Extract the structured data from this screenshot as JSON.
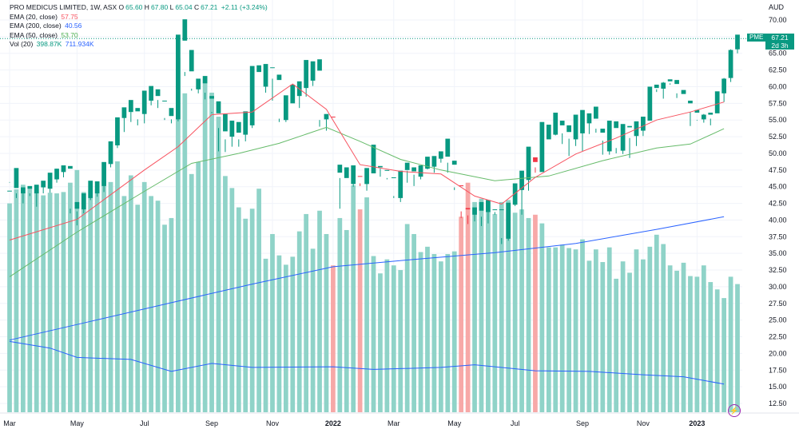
{
  "legend": {
    "title": "PRO MEDICUS LIMITED, 1W, ASX",
    "open_label": "O",
    "open": "65.60",
    "high_label": "H",
    "high": "67.80",
    "low_label": "L",
    "low": "65.04",
    "close_label": "C",
    "close": "67.21",
    "change": "+2.11 (+3.24%)",
    "ema20_label": "EMA (20, close)",
    "ema20": "57.75",
    "ema200_label": "EMA (200, close)",
    "ema200": "40.56",
    "ema50_label": "EMA (50, close)",
    "ema50": "53.70",
    "vol_label": "Vol (20)",
    "vol1": "398.87K",
    "vol2": "711.934K"
  },
  "price_tag": {
    "symbol": "PME",
    "price": "67.21",
    "countdown": "2d 3h"
  },
  "axis": {
    "currency": "AUD",
    "y_ticks": [
      "70.00",
      "67.50",
      "65.00",
      "62.50",
      "60.00",
      "57.50",
      "55.00",
      "52.50",
      "50.00",
      "47.50",
      "45.00",
      "42.50",
      "40.00",
      "37.50",
      "35.00",
      "32.50",
      "30.00",
      "27.50",
      "25.00",
      "22.50",
      "20.00",
      "17.50",
      "15.00",
      "12.50"
    ],
    "x_ticks": [
      "Mar",
      "May",
      "Jul",
      "Sep",
      "Nov",
      "2022",
      "Mar",
      "May",
      "Jul",
      "Sep",
      "Nov",
      "2023"
    ]
  },
  "colors": {
    "up": "#089981",
    "down": "#f23645",
    "up_vol": "#8fd3c8",
    "down_vol": "#f7a8a7",
    "ema20": "#f7525f",
    "ema50": "#66bb6a",
    "ema200": "#2962ff",
    "vol_ma": "#2962ff"
  },
  "chart_data": {
    "type": "candlestick",
    "ylim": [
      11,
      71.5
    ],
    "candles": [
      [
        44.4,
        45.6,
        44.4,
        45.7,
        42.5
      ],
      [
        44.8,
        44.0,
        47.8,
        43.3,
        44.6
      ],
      [
        44.0,
        44.7,
        44.9,
        42.5,
        45.3
      ],
      [
        44.7,
        44.0,
        45.1,
        43.6,
        44.9
      ],
      [
        44.0,
        45.0,
        45.3,
        42.0,
        44.6
      ],
      [
        44.9,
        45.6,
        45.9,
        44.0,
        43.7
      ],
      [
        44.7,
        46.3,
        47.1,
        44.1,
        44.1
      ],
      [
        46.1,
        47.7,
        47.7,
        45.6,
        44.0
      ],
      [
        47.2,
        47.8,
        48.2,
        46.4,
        44.2
      ],
      [
        47.7,
        41.7,
        48.1,
        41.0,
        45.6
      ],
      [
        41.7,
        41.3,
        42.7,
        39.2,
        47.5
      ],
      [
        41.6,
        43.3,
        44.0,
        41.0,
        44.2
      ],
      [
        43.3,
        44.2,
        45.9,
        43.0,
        44.5
      ],
      [
        44.0,
        45.4,
        45.8,
        43.5,
        44.6
      ],
      [
        45.1,
        48.5,
        48.7,
        44.2,
        46.0
      ],
      [
        48.4,
        51.5,
        51.8,
        47.9,
        45.7
      ],
      [
        51.2,
        55.3,
        55.4,
        50.8,
        48.8
      ],
      [
        55.3,
        56.2,
        56.9,
        53.2,
        43.6
      ],
      [
        56.2,
        56.2,
        58.0,
        54.7,
        46.7
      ],
      [
        56.3,
        55.1,
        56.8,
        54.2,
        42.3
      ],
      [
        55.9,
        57.8,
        59.4,
        54.5,
        45.7
      ],
      [
        57.9,
        58.9,
        60.1,
        57.2,
        43.6
      ],
      [
        58.6,
        58.0,
        59.6,
        56.8,
        42.9
      ],
      [
        57.9,
        55.3,
        57.9,
        55.0,
        39.3
      ],
      [
        55.6,
        55.1,
        56.8,
        54.5,
        40.3
      ],
      [
        55.1,
        66.7,
        67.8,
        54.8,
        64.3
      ],
      [
        66.9,
        62.2,
        70.1,
        61.6,
        59.0
      ],
      [
        62.3,
        59.7,
        65.5,
        59.4,
        46.9
      ],
      [
        59.6,
        60.5,
        61.2,
        59.0,
        48.7
      ],
      [
        60.5,
        59.1,
        61.6,
        58.1,
        61.2
      ],
      [
        58.2,
        56.2,
        58.6,
        56.0,
        59.1
      ],
      [
        56.0,
        53.8,
        57.8,
        50.3,
        55.5
      ],
      [
        53.3,
        52.1,
        55.9,
        50.2,
        46.6
      ],
      [
        52.5,
        53.7,
        54.9,
        51.0,
        44.8
      ],
      [
        53.1,
        52.1,
        54.7,
        51.0,
        41.9
      ],
      [
        52.8,
        54.0,
        56.3,
        51.8,
        40.2
      ],
      [
        54.2,
        62.4,
        63.1,
        53.8,
        41.7
      ],
      [
        62.2,
        60.1,
        63.2,
        60.1,
        44.7
      ],
      [
        60.0,
        62.9,
        63.4,
        59.1,
        34.2
      ],
      [
        62.8,
        61.2,
        62.9,
        57.9,
        37.9
      ],
      [
        61.0,
        55.2,
        61.8,
        54.7,
        34.7
      ],
      [
        55.0,
        57.5,
        58.7,
        54.7,
        33.3
      ],
      [
        57.5,
        58.5,
        60.3,
        57.8,
        34.5
      ],
      [
        58.6,
        59.8,
        60.8,
        56.8,
        38.3
      ],
      [
        59.8,
        60.9,
        64.0,
        58.5,
        40.9
      ],
      [
        60.9,
        62.8,
        63.8,
        60.1,
        35.7
      ],
      [
        62.4,
        55.0,
        64.1,
        54.0,
        41.4
      ],
      [
        55.1,
        55.2,
        55.9,
        53.4,
        37.9
      ],
      [
        55.5,
        47.2,
        55.4,
        47.2,
        33.2
      ],
      [
        47.1,
        46.3,
        48.3,
        41.7,
        40.3
      ],
      [
        46.3,
        45.9,
        47.9,
        45.9,
        38.5
      ],
      [
        45.4,
        47.0,
        48.2,
        45.0,
        45.2
      ],
      [
        46.6,
        45.5,
        46.5,
        45.1,
        41.6
      ],
      [
        45.4,
        47.1,
        47.8,
        44.4,
        43.4
      ],
      [
        47.0,
        48.0,
        51.3,
        47.2,
        34.6
      ],
      [
        47.9,
        47.7,
        48.1,
        46.5,
        32.0
      ],
      [
        47.4,
        46.3,
        47.5,
        46.1,
        34.1
      ],
      [
        46.4,
        43.6,
        46.4,
        43.3,
        33.2
      ],
      [
        43.3,
        47.2,
        47.4,
        42.7,
        32.5
      ],
      [
        47.5,
        47.4,
        48.6,
        45.6,
        39.4
      ],
      [
        47.3,
        46.8,
        47.9,
        45.1,
        37.9
      ],
      [
        46.5,
        47.9,
        48.2,
        46.1,
        35.2
      ],
      [
        47.7,
        48.3,
        49.5,
        47.6,
        36.0
      ],
      [
        48.0,
        49.0,
        49.6,
        47.1,
        34.9
      ],
      [
        49.2,
        49.7,
        50.3,
        48.6,
        33.8
      ],
      [
        49.5,
        48.6,
        52.2,
        47.1,
        34.9
      ],
      [
        48.3,
        44.9,
        48.9,
        44.5,
        35.3
      ],
      [
        45.2,
        41.3,
        45.1,
        40.3,
        40.5
      ],
      [
        41.8,
        40.7,
        41.6,
        39.4,
        45.6
      ],
      [
        40.8,
        41.5,
        41.9,
        39.8,
        42.7
      ],
      [
        41.4,
        40.5,
        42.7,
        39.1,
        43.2
      ],
      [
        41.2,
        41.5,
        43.0,
        39.5,
        41.3
      ],
      [
        41.6,
        41.2,
        41.6,
        40.8,
        40.9
      ],
      [
        41.5,
        37.3,
        41.6,
        36.4,
        42.7
      ],
      [
        37.2,
        42.5,
        42.6,
        36.9,
        43.0
      ],
      [
        42.3,
        44.5,
        45.5,
        42.1,
        41.1
      ],
      [
        44.5,
        46.0,
        47.4,
        40.8,
        41.6
      ],
      [
        46.0,
        49.4,
        51.0,
        44.4,
        40.3
      ],
      [
        49.4,
        47.9,
        48.7,
        47.1,
        40.8
      ],
      [
        47.2,
        52.4,
        54.7,
        47.5,
        39.5
      ],
      [
        52.1,
        52.9,
        54.3,
        52.5,
        35.9
      ],
      [
        52.8,
        54.3,
        56.1,
        52.7,
        35.9
      ],
      [
        54.2,
        53.0,
        54.9,
        51.4,
        36.3
      ],
      [
        53.2,
        52.2,
        54.2,
        49.6,
        35.8
      ],
      [
        52.1,
        52.8,
        55.8,
        51.1,
        35.6
      ],
      [
        53.0,
        54.6,
        56.5,
        50.3,
        37.1
      ],
      [
        54.5,
        55.0,
        56.0,
        52.9,
        33.9
      ],
      [
        55.2,
        53.1,
        57.0,
        53.7,
        35.6
      ],
      [
        53.1,
        49.8,
        53.7,
        51.9,
        33.7
      ],
      [
        50.3,
        53.5,
        54.9,
        49.8,
        35.9
      ],
      [
        53.8,
        50.8,
        54.8,
        50.0,
        31.2
      ],
      [
        50.4,
        54.0,
        54.4,
        49.9,
        33.8
      ],
      [
        53.9,
        52.3,
        54.1,
        49.3,
        32.1
      ],
      [
        52.6,
        53.6,
        54.8,
        51.1,
        35.6
      ],
      [
        53.4,
        54.9,
        55.5,
        52.6,
        34.1
      ],
      [
        54.9,
        59.4,
        60.0,
        55.1,
        36.0
      ],
      [
        59.8,
        59.6,
        60.3,
        59.2,
        37.8
      ],
      [
        59.7,
        60.7,
        60.6,
        58.2,
        36.4
      ],
      [
        60.8,
        60.5,
        61.1,
        60.3,
        33.2
      ],
      [
        60.4,
        59.0,
        61.0,
        58.3,
        32.4
      ],
      [
        58.9,
        57.4,
        59.5,
        57.4,
        33.6
      ],
      [
        57.5,
        56.2,
        57.9,
        54.1,
        31.6
      ],
      [
        56.1,
        54.9,
        56.5,
        55.0,
        31.5
      ],
      [
        55.1,
        55.9,
        55.8,
        54.6,
        33.2
      ],
      [
        55.8,
        55.2,
        56.1,
        54.2,
        30.7
      ],
      [
        56.0,
        59.2,
        59.3,
        56.2,
        29.6
      ],
      [
        59.0,
        61.3,
        61.2,
        57.7,
        28.3
      ],
      [
        61.3,
        65.6,
        65.5,
        60.7,
        31.5
      ],
      [
        65.6,
        67.2,
        67.8,
        65.0,
        30.4
      ]
    ],
    "notes": "each candle: [open, high, close, low, volume-bar-top in price-scale units]; values were read off the price axis",
    "ema20": [
      [
        0,
        37
      ],
      [
        10,
        40.1
      ],
      [
        20,
        47.5
      ],
      [
        25,
        51
      ],
      [
        30,
        55.8
      ],
      [
        36,
        56.2
      ],
      [
        42,
        60.4
      ],
      [
        47,
        56.6
      ],
      [
        52,
        48.3
      ],
      [
        58,
        47.3
      ],
      [
        64,
        46.9
      ],
      [
        69,
        43.6
      ],
      [
        73,
        42.4
      ],
      [
        78,
        46.4
      ],
      [
        84,
        49.9
      ],
      [
        90,
        52.3
      ],
      [
        96,
        55
      ],
      [
        101,
        56.2
      ],
      [
        106,
        57.7
      ]
    ],
    "ema50": [
      [
        0,
        31.5
      ],
      [
        10,
        38.2
      ],
      [
        20,
        44.3
      ],
      [
        27,
        48.5
      ],
      [
        34,
        50
      ],
      [
        40,
        51.5
      ],
      [
        47,
        53.9
      ],
      [
        52,
        51.8
      ],
      [
        58,
        49.1
      ],
      [
        64,
        47.5
      ],
      [
        72,
        45.9
      ],
      [
        80,
        46.6
      ],
      [
        88,
        48.9
      ],
      [
        96,
        50.8
      ],
      [
        101,
        51.4
      ],
      [
        106,
        53.7
      ]
    ],
    "ema200": [
      [
        0,
        22
      ],
      [
        12,
        24.8
      ],
      [
        24,
        27.6
      ],
      [
        36,
        30.4
      ],
      [
        48,
        33
      ],
      [
        60,
        34.1
      ],
      [
        72,
        35.1
      ],
      [
        84,
        36.5
      ],
      [
        96,
        38.6
      ],
      [
        106,
        40.5
      ]
    ],
    "vol_ma": [
      [
        0,
        21.8
      ],
      [
        6,
        20.8
      ],
      [
        10,
        19.4
      ],
      [
        18,
        19.1
      ],
      [
        24,
        17.3
      ],
      [
        30,
        18.5
      ],
      [
        36,
        17.9
      ],
      [
        48,
        18
      ],
      [
        54,
        17.6
      ],
      [
        64,
        17.9
      ],
      [
        69,
        18.3
      ],
      [
        78,
        17.4
      ],
      [
        86,
        17.3
      ],
      [
        94,
        16.8
      ],
      [
        100,
        16.5
      ],
      [
        106,
        15.4
      ]
    ],
    "last_price": 67.21,
    "x_tick_index": [
      0,
      10,
      20,
      30,
      39,
      48,
      57,
      66,
      75,
      85,
      94,
      102
    ]
  }
}
